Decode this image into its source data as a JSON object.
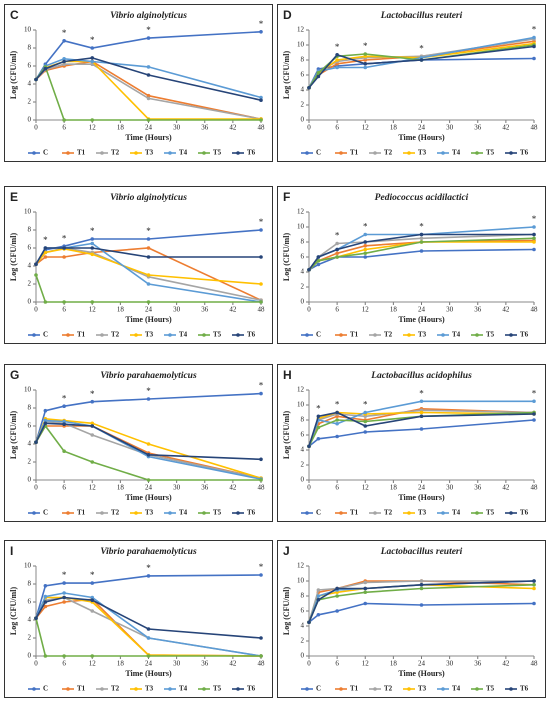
{
  "chart_data": [
    {
      "type": "line",
      "panel_label": "C",
      "title": "Vibrio alginolyticus",
      "x_label": "Time (Hours)",
      "y_label": "Log (CFU/ml)",
      "x": [
        0,
        2,
        6,
        12,
        24,
        48
      ],
      "xlim": [
        0,
        48
      ],
      "xticks": [
        0,
        6,
        12,
        18,
        24,
        30,
        36,
        42,
        48
      ],
      "ylim": [
        0,
        10
      ],
      "yticks": [
        0,
        2,
        4,
        6,
        8,
        10
      ],
      "annotation_text": "*",
      "annotation_x": [
        6,
        12,
        24,
        48
      ],
      "series": [
        {
          "name": "C",
          "color": "#4472c4",
          "values": [
            4.5,
            6.2,
            8.8,
            8.0,
            9.1,
            9.8
          ]
        },
        {
          "name": "T1",
          "color": "#ed7d31",
          "values": [
            4.5,
            5.5,
            6.0,
            6.5,
            2.7,
            0.1
          ]
        },
        {
          "name": "T2",
          "color": "#a5a5a5",
          "values": [
            4.5,
            5.6,
            6.2,
            6.2,
            2.4,
            0.1
          ]
        },
        {
          "name": "T3",
          "color": "#ffc000",
          "values": [
            4.5,
            5.8,
            6.5,
            6.5,
            0.1,
            0.1
          ]
        },
        {
          "name": "T4",
          "color": "#5b9bd5",
          "values": [
            4.5,
            6.0,
            6.8,
            6.5,
            5.9,
            2.5
          ]
        },
        {
          "name": "T5",
          "color": "#70ad47",
          "values": [
            4.5,
            5.9,
            0,
            0,
            0,
            0
          ]
        },
        {
          "name": "T6",
          "color": "#264478",
          "values": [
            4.5,
            5.7,
            6.5,
            6.9,
            5.0,
            2.2
          ]
        }
      ]
    },
    {
      "type": "line",
      "panel_label": "D",
      "title": "Lactobacillus reuteri",
      "x_label": "Time (Hours)",
      "y_label": "Log (CFU/ml)",
      "x": [
        0,
        2,
        6,
        12,
        24,
        48
      ],
      "xlim": [
        0,
        48
      ],
      "xticks": [
        0,
        6,
        12,
        18,
        24,
        30,
        36,
        42,
        48
      ],
      "ylim": [
        0,
        12
      ],
      "yticks": [
        0,
        2,
        4,
        6,
        8,
        10,
        12
      ],
      "annotation_text": "*",
      "annotation_x": [
        6,
        12,
        24,
        48
      ],
      "series": [
        {
          "name": "C",
          "color": "#4472c4",
          "values": [
            4.3,
            6.8,
            7.2,
            7.5,
            8.0,
            8.2
          ]
        },
        {
          "name": "T1",
          "color": "#ed7d31",
          "values": [
            4.3,
            6.0,
            7.5,
            8.0,
            8.5,
            10.5
          ]
        },
        {
          "name": "T2",
          "color": "#a5a5a5",
          "values": [
            4.3,
            6.5,
            7.8,
            8.3,
            8.5,
            10.8
          ]
        },
        {
          "name": "T3",
          "color": "#ffc000",
          "values": [
            4.3,
            6.2,
            8.0,
            8.5,
            8.3,
            10.2
          ]
        },
        {
          "name": "T4",
          "color": "#5b9bd5",
          "values": [
            4.3,
            6.5,
            7.0,
            7.0,
            8.3,
            11.0
          ]
        },
        {
          "name": "T5",
          "color": "#70ad47",
          "values": [
            4.3,
            6.3,
            8.5,
            8.8,
            8.0,
            10.0
          ]
        },
        {
          "name": "T6",
          "color": "#264478",
          "values": [
            4.3,
            5.8,
            8.7,
            7.5,
            8.0,
            9.8
          ]
        }
      ]
    },
    {
      "type": "line",
      "panel_label": "E",
      "title": "Vibrio alginolyticus",
      "x_label": "Time (Hours)",
      "y_label": "Log (CFU/ml)",
      "x": [
        0,
        2,
        6,
        12,
        24,
        48
      ],
      "xlim": [
        0,
        48
      ],
      "xticks": [
        0,
        6,
        12,
        18,
        24,
        30,
        36,
        42,
        48
      ],
      "ylim": [
        0,
        10
      ],
      "yticks": [
        0,
        2,
        4,
        6,
        8,
        10
      ],
      "annotation_text": "*",
      "annotation_x": [
        2,
        6,
        12,
        24,
        48
      ],
      "series": [
        {
          "name": "C",
          "color": "#4472c4",
          "values": [
            4.2,
            5.8,
            6.2,
            7.0,
            7.0,
            8.0
          ]
        },
        {
          "name": "T1",
          "color": "#ed7d31",
          "values": [
            4.2,
            5.0,
            5.0,
            5.5,
            6.0,
            0.2
          ]
        },
        {
          "name": "T2",
          "color": "#a5a5a5",
          "values": [
            4.2,
            5.5,
            6.0,
            5.5,
            2.8,
            0.2
          ]
        },
        {
          "name": "T3",
          "color": "#ffc000",
          "values": [
            4.2,
            5.5,
            5.9,
            5.3,
            3.0,
            2.0
          ]
        },
        {
          "name": "T4",
          "color": "#5b9bd5",
          "values": [
            4.2,
            6.0,
            6.0,
            6.5,
            2.0,
            0.0
          ]
        },
        {
          "name": "T5",
          "color": "#70ad47",
          "values": [
            3.0,
            0,
            0,
            0,
            0,
            0
          ]
        },
        {
          "name": "T6",
          "color": "#264478",
          "values": [
            4.2,
            6.0,
            6.0,
            6.0,
            5.0,
            5.0
          ]
        }
      ]
    },
    {
      "type": "line",
      "panel_label": "F",
      "title": "Pediococcus acidilactici",
      "x_label": "Time (Hours)",
      "y_label": "Log (CFU/ml)",
      "x": [
        0,
        2,
        6,
        12,
        24,
        48
      ],
      "xlim": [
        0,
        48
      ],
      "xticks": [
        0,
        6,
        12,
        18,
        24,
        30,
        36,
        42,
        48
      ],
      "ylim": [
        0,
        12
      ],
      "yticks": [
        0,
        2,
        4,
        6,
        8,
        10,
        12
      ],
      "annotation_text": "*",
      "annotation_x": [
        6,
        12,
        24,
        48
      ],
      "series": [
        {
          "name": "C",
          "color": "#4472c4",
          "values": [
            4.3,
            5.0,
            6.0,
            6.0,
            6.8,
            7.0
          ]
        },
        {
          "name": "T1",
          "color": "#ed7d31",
          "values": [
            4.3,
            5.5,
            6.5,
            7.5,
            8.0,
            8.2
          ]
        },
        {
          "name": "T2",
          "color": "#a5a5a5",
          "values": [
            4.3,
            6.0,
            7.8,
            8.0,
            8.5,
            9.0
          ]
        },
        {
          "name": "T3",
          "color": "#ffc000",
          "values": [
            4.3,
            5.5,
            6.0,
            7.0,
            8.0,
            8.0
          ]
        },
        {
          "name": "T4",
          "color": "#5b9bd5",
          "values": [
            4.3,
            6.0,
            7.0,
            9.0,
            9.0,
            10.0
          ]
        },
        {
          "name": "T5",
          "color": "#70ad47",
          "values": [
            4.3,
            5.5,
            6.0,
            6.5,
            8.0,
            8.5
          ]
        },
        {
          "name": "T6",
          "color": "#264478",
          "values": [
            4.3,
            6.0,
            7.0,
            8.0,
            9.0,
            9.0
          ]
        }
      ]
    },
    {
      "type": "line",
      "panel_label": "G",
      "title": "Vibrio parahaemolyticus",
      "x_label": "Time (Hours)",
      "y_label": "Log (CFU/ml)",
      "x": [
        0,
        2,
        6,
        12,
        24,
        48
      ],
      "xlim": [
        0,
        48
      ],
      "xticks": [
        0,
        6,
        12,
        18,
        24,
        30,
        36,
        42,
        48
      ],
      "ylim": [
        0,
        10
      ],
      "yticks": [
        0,
        2,
        4,
        6,
        8,
        10
      ],
      "annotation_text": "*",
      "annotation_x": [
        6,
        12,
        24,
        48
      ],
      "series": [
        {
          "name": "C",
          "color": "#4472c4",
          "values": [
            4.2,
            7.7,
            8.2,
            8.7,
            9.0,
            9.6
          ]
        },
        {
          "name": "T1",
          "color": "#ed7d31",
          "values": [
            4.2,
            6.0,
            6.0,
            6.0,
            3.0,
            0.2
          ]
        },
        {
          "name": "T2",
          "color": "#a5a5a5",
          "values": [
            4.2,
            6.5,
            6.3,
            5.0,
            2.8,
            0.2
          ]
        },
        {
          "name": "T3",
          "color": "#ffc000",
          "values": [
            4.2,
            6.8,
            6.6,
            6.3,
            4.0,
            0.2
          ]
        },
        {
          "name": "T4",
          "color": "#5b9bd5",
          "values": [
            4.2,
            6.6,
            6.5,
            6.0,
            2.6,
            0.1
          ]
        },
        {
          "name": "T5",
          "color": "#70ad47",
          "values": [
            4.2,
            6.0,
            3.2,
            2.0,
            0,
            0
          ]
        },
        {
          "name": "T6",
          "color": "#264478",
          "values": [
            4.2,
            6.3,
            6.2,
            6.0,
            2.8,
            2.3
          ]
        }
      ]
    },
    {
      "type": "line",
      "panel_label": "H",
      "title": "Lactobacillus acidophilus",
      "x_label": "Time (Hours)",
      "y_label": "Log (CFU/ml)",
      "x": [
        0,
        2,
        6,
        12,
        24,
        48
      ],
      "xlim": [
        0,
        48
      ],
      "xticks": [
        0,
        6,
        12,
        18,
        24,
        30,
        36,
        42,
        48
      ],
      "ylim": [
        0,
        12
      ],
      "yticks": [
        0,
        2,
        4,
        6,
        8,
        10,
        12
      ],
      "annotation_text": "*",
      "annotation_x": [
        2,
        6,
        12,
        24,
        48
      ],
      "series": [
        {
          "name": "C",
          "color": "#4472c4",
          "values": [
            4.5,
            5.5,
            5.8,
            6.4,
            6.8,
            8.0
          ]
        },
        {
          "name": "T1",
          "color": "#ed7d31",
          "values": [
            4.5,
            7.5,
            8.5,
            8.0,
            9.5,
            9.0
          ]
        },
        {
          "name": "T2",
          "color": "#a5a5a5",
          "values": [
            4.5,
            8.0,
            8.8,
            8.5,
            9.3,
            9.0
          ]
        },
        {
          "name": "T3",
          "color": "#ffc000",
          "values": [
            4.5,
            8.2,
            9.0,
            8.8,
            9.0,
            8.8
          ]
        },
        {
          "name": "T4",
          "color": "#5b9bd5",
          "values": [
            4.5,
            8.0,
            7.5,
            9.0,
            10.5,
            10.5
          ]
        },
        {
          "name": "T5",
          "color": "#70ad47",
          "values": [
            4.5,
            7.0,
            8.0,
            7.8,
            8.5,
            9.0
          ]
        },
        {
          "name": "T6",
          "color": "#264478",
          "values": [
            4.5,
            8.5,
            9.0,
            7.2,
            8.5,
            8.8
          ]
        }
      ]
    },
    {
      "type": "line",
      "panel_label": "I",
      "title": "Vibrio parahaemolyticus",
      "x_label": "Time (Hours)",
      "y_label": "Log (CFU/ml)",
      "x": [
        0,
        2,
        6,
        12,
        24,
        48
      ],
      "xlim": [
        0,
        48
      ],
      "xticks": [
        0,
        6,
        12,
        18,
        24,
        30,
        36,
        42,
        48
      ],
      "ylim": [
        0,
        10
      ],
      "yticks": [
        0,
        2,
        4,
        6,
        8,
        10
      ],
      "annotation_text": "*",
      "annotation_x": [
        6,
        12,
        24,
        48
      ],
      "series": [
        {
          "name": "C",
          "color": "#4472c4",
          "values": [
            4.2,
            7.8,
            8.1,
            8.1,
            8.9,
            9.0
          ]
        },
        {
          "name": "T1",
          "color": "#ed7d31",
          "values": [
            4.2,
            5.5,
            6.0,
            6.3,
            0.1,
            0
          ]
        },
        {
          "name": "T2",
          "color": "#a5a5a5",
          "values": [
            4.2,
            6.2,
            6.5,
            5.0,
            2.0,
            0
          ]
        },
        {
          "name": "T3",
          "color": "#ffc000",
          "values": [
            4.2,
            6.5,
            6.5,
            6.0,
            0.1,
            0
          ]
        },
        {
          "name": "T4",
          "color": "#5b9bd5",
          "values": [
            4.2,
            6.6,
            7.0,
            6.5,
            2.0,
            0
          ]
        },
        {
          "name": "T5",
          "color": "#70ad47",
          "values": [
            4.2,
            0,
            0,
            0,
            0,
            0
          ]
        },
        {
          "name": "T6",
          "color": "#264478",
          "values": [
            4.2,
            6.0,
            6.5,
            6.2,
            3.0,
            2.0
          ]
        }
      ]
    },
    {
      "type": "line",
      "panel_label": "J",
      "title": "Lactobacillus reuteri",
      "x_label": "Time (Hours)",
      "y_label": "Log (CFU/ml)",
      "x": [
        0,
        2,
        6,
        12,
        24,
        48
      ],
      "xlim": [
        0,
        48
      ],
      "xticks": [
        0,
        6,
        12,
        18,
        24,
        30,
        36,
        42,
        48
      ],
      "ylim": [
        0,
        12
      ],
      "yticks": [
        0,
        2,
        4,
        6,
        8,
        10,
        12
      ],
      "annotation_text": "*",
      "annotation_x": [],
      "series": [
        {
          "name": "C",
          "color": "#4472c4",
          "values": [
            4.5,
            5.5,
            6.0,
            7.0,
            6.8,
            7.0
          ]
        },
        {
          "name": "T1",
          "color": "#ed7d31",
          "values": [
            4.5,
            8.5,
            9.0,
            10.0,
            10.0,
            9.5
          ]
        },
        {
          "name": "T2",
          "color": "#a5a5a5",
          "values": [
            4.5,
            8.8,
            9.0,
            9.8,
            10.0,
            10.0
          ]
        },
        {
          "name": "T3",
          "color": "#ffc000",
          "values": [
            4.5,
            8.0,
            8.5,
            9.0,
            9.5,
            9.0
          ]
        },
        {
          "name": "T4",
          "color": "#5b9bd5",
          "values": [
            4.5,
            8.0,
            8.8,
            9.0,
            9.5,
            10.0
          ]
        },
        {
          "name": "T5",
          "color": "#70ad47",
          "values": [
            4.5,
            7.5,
            8.0,
            8.5,
            9.0,
            9.5
          ]
        },
        {
          "name": "T6",
          "color": "#264478",
          "values": [
            4.5,
            7.5,
            9.0,
            9.0,
            9.5,
            10.0
          ]
        }
      ]
    }
  ]
}
